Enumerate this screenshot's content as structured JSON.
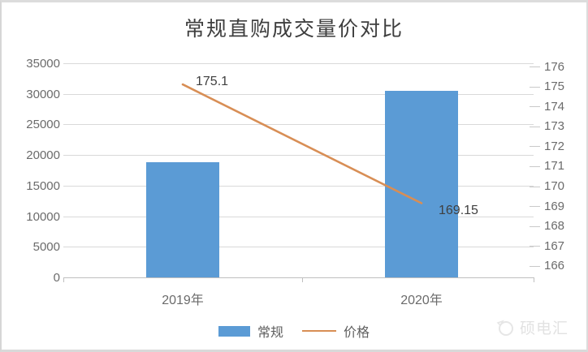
{
  "title": "常规直购成交量价对比",
  "colors": {
    "bar": "#5b9bd5",
    "line": "#d88e55",
    "gridline": "#d9d9d9",
    "axis_line": "#bfbfbf",
    "axis_text": "#6b6b6b",
    "data_label_text": "#3f3f3f"
  },
  "chart_data": {
    "type": "bar",
    "subtype": "bar+line combo, dual axis",
    "title": "常规直购成交量价对比",
    "categories": [
      "2019年",
      "2020年"
    ],
    "series": [
      {
        "name": "常规",
        "type": "bar",
        "axis": "left",
        "values": [
          18800,
          30500
        ],
        "color": "#5b9bd5"
      },
      {
        "name": "价格",
        "type": "line",
        "axis": "right",
        "values": [
          175.1,
          169.15
        ],
        "color": "#d88e55"
      }
    ],
    "point_labels": [
      "175.1",
      "169.15"
    ],
    "left_axis": {
      "range": [
        0,
        35000
      ],
      "ticks": [
        "35000",
        "30000",
        "25000",
        "20000",
        "15000",
        "10000",
        "5000",
        "0"
      ]
    },
    "right_axis": {
      "range": [
        166,
        176
      ],
      "ticks": [
        "176",
        "175",
        "174",
        "173",
        "172",
        "171",
        "170",
        "169",
        "168",
        "167",
        "166"
      ]
    },
    "grid": true,
    "legend_position": "bottom",
    "legend": [
      {
        "label": "常规",
        "swatch": "bar"
      },
      {
        "label": "价格",
        "swatch": "line"
      }
    ]
  },
  "watermark": {
    "text": "硕电汇"
  }
}
